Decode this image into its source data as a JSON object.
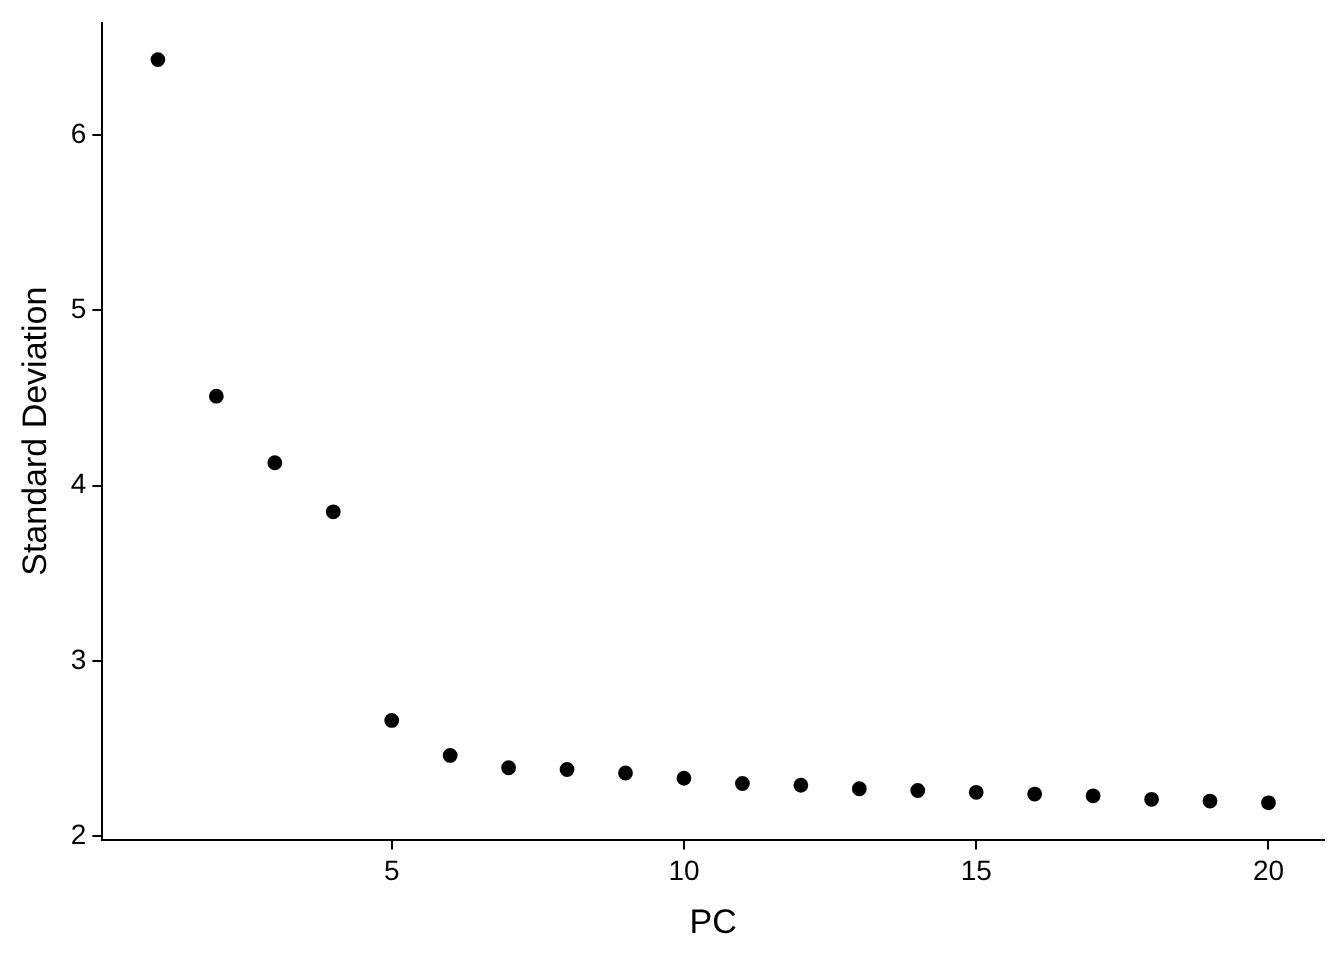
{
  "chart_data": {
    "type": "scatter",
    "xlabel": "PC",
    "ylabel": "Standard Deviation",
    "x": [
      1,
      2,
      3,
      4,
      5,
      6,
      7,
      8,
      9,
      10,
      11,
      12,
      13,
      14,
      15,
      16,
      17,
      18,
      19,
      20
    ],
    "series": [
      {
        "color": "#000000",
        "values": [
          6.43,
          4.51,
          4.13,
          3.85,
          2.66,
          2.46,
          2.39,
          2.38,
          2.36,
          2.33,
          2.3,
          2.29,
          2.27,
          2.26,
          2.25,
          2.24,
          2.23,
          2.21,
          2.2,
          2.19
        ]
      }
    ],
    "xlim": [
      0.05,
      20.95
    ],
    "xticks": [
      5,
      10,
      15,
      20
    ],
    "ylim": [
      1.98,
      6.64
    ],
    "yticks": [
      2,
      3,
      4,
      5,
      6
    ],
    "grid": false,
    "legend": false,
    "marker": "circle"
  }
}
